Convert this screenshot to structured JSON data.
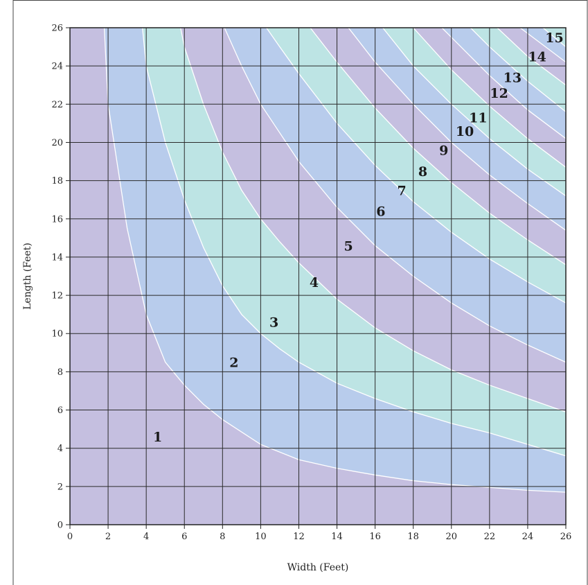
{
  "chart_data": {
    "type": "area",
    "xlabel": "Width (Feet)",
    "ylabel": "Length (Feet)",
    "xlim": [
      0,
      26
    ],
    "ylim": [
      0,
      26
    ],
    "x_ticks": [
      0,
      2,
      4,
      6,
      8,
      10,
      12,
      14,
      16,
      18,
      20,
      22,
      24,
      26
    ],
    "y_ticks": [
      0,
      2,
      4,
      6,
      8,
      10,
      12,
      14,
      16,
      18,
      20,
      22,
      24,
      26
    ],
    "grid": true,
    "zone_colors": [
      "#c5bfe0",
      "#b8ccec",
      "#bde4e4"
    ],
    "boundary_color": "#ffffff",
    "boundaries": [
      {
        "between": [
          "1",
          "2"
        ],
        "points": [
          [
            1.8,
            26
          ],
          [
            2,
            22
          ],
          [
            3,
            15.5
          ],
          [
            4,
            11
          ],
          [
            5,
            8.5
          ],
          [
            6,
            7.3
          ],
          [
            7,
            6.3
          ],
          [
            8,
            5.5
          ],
          [
            10,
            4.2
          ],
          [
            12,
            3.4
          ],
          [
            14,
            2.95
          ],
          [
            16,
            2.6
          ],
          [
            18,
            2.3
          ],
          [
            20,
            2.1
          ],
          [
            22,
            1.95
          ],
          [
            24,
            1.8
          ],
          [
            26,
            1.7
          ]
        ]
      },
      {
        "between": [
          "2",
          "3"
        ],
        "points": [
          [
            3.8,
            26
          ],
          [
            4,
            24
          ],
          [
            5,
            20
          ],
          [
            6,
            17
          ],
          [
            7,
            14.5
          ],
          [
            8,
            12.5
          ],
          [
            9,
            11
          ],
          [
            10,
            10
          ],
          [
            11,
            9.2
          ],
          [
            12,
            8.5
          ],
          [
            14,
            7.4
          ],
          [
            16,
            6.6
          ],
          [
            18,
            5.9
          ],
          [
            20,
            5.3
          ],
          [
            22,
            4.8
          ],
          [
            24,
            4.2
          ],
          [
            26,
            3.6
          ]
        ]
      },
      {
        "between": [
          "3",
          "4"
        ],
        "points": [
          [
            5.8,
            26
          ],
          [
            6,
            25
          ],
          [
            7,
            22
          ],
          [
            8,
            19.5
          ],
          [
            9,
            17.5
          ],
          [
            10,
            16
          ],
          [
            11,
            14.8
          ],
          [
            12,
            13.7
          ],
          [
            14,
            11.8
          ],
          [
            16,
            10.3
          ],
          [
            18,
            9.1
          ],
          [
            20,
            8.1
          ],
          [
            22,
            7.3
          ],
          [
            24,
            6.6
          ],
          [
            26,
            5.9
          ]
        ]
      },
      {
        "between": [
          "4",
          "5"
        ],
        "points": [
          [
            8.1,
            26
          ],
          [
            9,
            24
          ],
          [
            10,
            22
          ],
          [
            11,
            20.5
          ],
          [
            12,
            19
          ],
          [
            14,
            16.6
          ],
          [
            16,
            14.6
          ],
          [
            18,
            13
          ],
          [
            20,
            11.6
          ],
          [
            22,
            10.4
          ],
          [
            24,
            9.4
          ],
          [
            26,
            8.5
          ]
        ]
      },
      {
        "between": [
          "5",
          "6"
        ],
        "points": [
          [
            10.3,
            26
          ],
          [
            11,
            25
          ],
          [
            12,
            23.6
          ],
          [
            14,
            21
          ],
          [
            16,
            18.8
          ],
          [
            18,
            16.9
          ],
          [
            20,
            15.3
          ],
          [
            22,
            13.9
          ],
          [
            24,
            12.7
          ],
          [
            26,
            11.6
          ]
        ]
      },
      {
        "between": [
          "6",
          "7"
        ],
        "points": [
          [
            12.6,
            26
          ],
          [
            14,
            24.2
          ],
          [
            16,
            21.8
          ],
          [
            18,
            19.7
          ],
          [
            20,
            17.9
          ],
          [
            22,
            16.3
          ],
          [
            24,
            14.9
          ],
          [
            26,
            13.6
          ]
        ]
      },
      {
        "between": [
          "7",
          "8"
        ],
        "points": [
          [
            14.6,
            26
          ],
          [
            16,
            24.2
          ],
          [
            18,
            22
          ],
          [
            20,
            20
          ],
          [
            22,
            18.3
          ],
          [
            24,
            16.8
          ],
          [
            26,
            15.4
          ]
        ]
      },
      {
        "between": [
          "8",
          "9"
        ],
        "points": [
          [
            16.4,
            26
          ],
          [
            18,
            24
          ],
          [
            20,
            22
          ],
          [
            22,
            20.2
          ],
          [
            24,
            18.6
          ],
          [
            26,
            17.2
          ]
        ]
      },
      {
        "between": [
          "9",
          "10"
        ],
        "points": [
          [
            18,
            26
          ],
          [
            20,
            23.8
          ],
          [
            22,
            21.9
          ],
          [
            24,
            20.2
          ],
          [
            26,
            18.7
          ]
        ]
      },
      {
        "between": [
          "10",
          "11"
        ],
        "points": [
          [
            19.5,
            26
          ],
          [
            20,
            25.5
          ],
          [
            22,
            23.5
          ],
          [
            24,
            21.7
          ],
          [
            26,
            20.2
          ]
        ]
      },
      {
        "between": [
          "11",
          "12"
        ],
        "points": [
          [
            21,
            26
          ],
          [
            22,
            25
          ],
          [
            24,
            23.2
          ],
          [
            26,
            21.6
          ]
        ]
      },
      {
        "between": [
          "12",
          "13"
        ],
        "points": [
          [
            22.4,
            26
          ],
          [
            24,
            24.5
          ],
          [
            26,
            23
          ]
        ]
      },
      {
        "between": [
          "13",
          "14"
        ],
        "points": [
          [
            23.6,
            26
          ],
          [
            24,
            25.7
          ],
          [
            26,
            24.2
          ]
        ]
      },
      {
        "between": [
          "14",
          "15"
        ],
        "points": [
          [
            24.8,
            26
          ],
          [
            26,
            25
          ]
        ]
      }
    ],
    "zone_labels": [
      {
        "label": "1",
        "x": 4.6,
        "y": 4.6
      },
      {
        "label": "2",
        "x": 8.6,
        "y": 8.5
      },
      {
        "label": "3",
        "x": 10.7,
        "y": 10.6
      },
      {
        "label": "4",
        "x": 12.8,
        "y": 12.7
      },
      {
        "label": "5",
        "x": 14.6,
        "y": 14.6
      },
      {
        "label": "6",
        "x": 16.3,
        "y": 16.4
      },
      {
        "label": "7",
        "x": 17.4,
        "y": 17.5
      },
      {
        "label": "8",
        "x": 18.5,
        "y": 18.5
      },
      {
        "label": "9",
        "x": 19.6,
        "y": 19.6
      },
      {
        "label": "10",
        "x": 20.7,
        "y": 20.6
      },
      {
        "label": "11",
        "x": 21.4,
        "y": 21.3
      },
      {
        "label": "12",
        "x": 22.5,
        "y": 22.6
      },
      {
        "label": "13",
        "x": 23.2,
        "y": 23.4
      },
      {
        "label": "14",
        "x": 24.5,
        "y": 24.5
      },
      {
        "label": "15",
        "x": 25.4,
        "y": 25.5
      }
    ]
  }
}
